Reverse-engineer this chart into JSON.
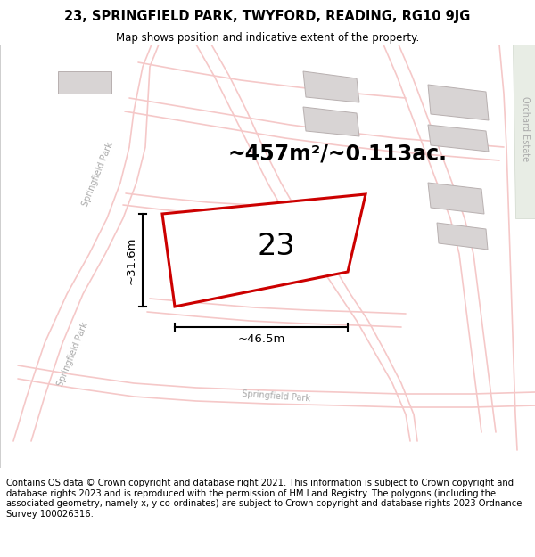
{
  "title_line1": "23, SPRINGFIELD PARK, TWYFORD, READING, RG10 9JG",
  "title_line2": "Map shows position and indicative extent of the property.",
  "area_text": "~457m²/~0.113ac.",
  "number_label": "23",
  "dim_width": "~46.5m",
  "dim_height": "~31.6m",
  "footer_text": "Contains OS data © Crown copyright and database right 2021. This information is subject to Crown copyright and database rights 2023 and is reproduced with the permission of HM Land Registry. The polygons (including the associated geometry, namely x, y co-ordinates) are subject to Crown copyright and database rights 2023 Ordnance Survey 100026316.",
  "map_bg": "#faf8f8",
  "plot_outline_color": "#cc0000",
  "plot_fill_color": "#ffffff",
  "road_color": "#f5c8c8",
  "road_edge_color": "#e8a0a0",
  "building_color": "#d8d4d4",
  "building_edge_color": "#b8b0b0",
  "dim_line_color": "#000000",
  "street_label_color": "#aaaaaa",
  "orchard_bg": "#e8ede8",
  "title_fontsize": 10.5,
  "subtitle_fontsize": 8.5,
  "area_fontsize": 17,
  "number_fontsize": 24,
  "dim_fontsize": 9.5,
  "footer_fontsize": 7.2,
  "street_fontsize": 7
}
